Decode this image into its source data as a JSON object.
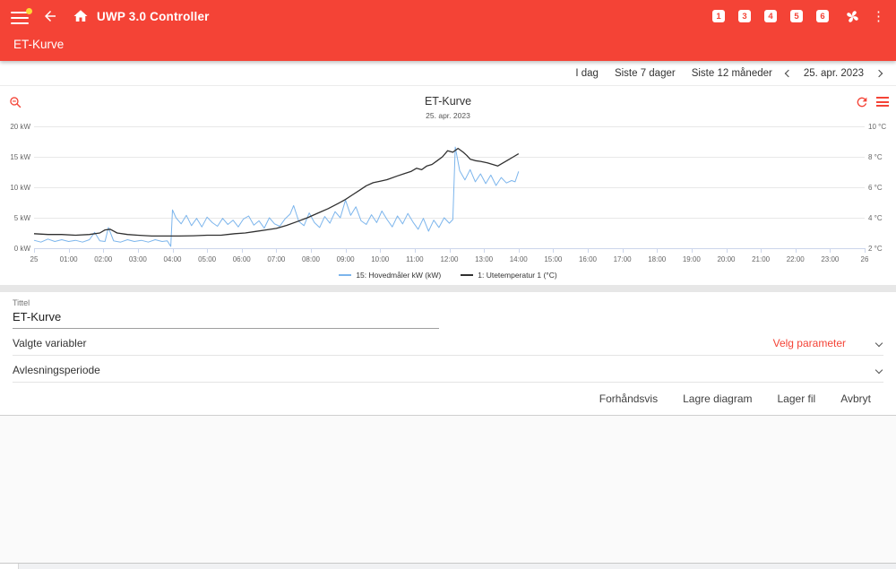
{
  "app": {
    "header": {
      "title": "UWP 3.0 Controller",
      "page_title": "ET-Kurve",
      "nav_badges": [
        "1",
        "3",
        "4",
        "5",
        "6"
      ]
    },
    "toolbar": {
      "today": "I dag",
      "last7": "Siste 7 dager",
      "last12": "Siste 12 måneder",
      "date": "25. apr. 2023"
    },
    "form": {
      "title_label": "Tittel",
      "title_value": "ET-Kurve",
      "variables_label": "Valgte variabler",
      "variables_action": "Velg parameter",
      "period_label": "Avlesningsperiode",
      "buttons": [
        {
          "label": "Forhåndsvis"
        },
        {
          "label": "Lagre diagram"
        },
        {
          "label": "Lager fil"
        },
        {
          "label": "Avbryt"
        }
      ]
    },
    "colors": {
      "header_red": "#f44336",
      "accent_red": "#f44336",
      "power_blue": "#7cb5ec",
      "temp_black": "#303030",
      "badge_yellow": "#fdd835"
    }
  },
  "chart_data": {
    "type": "line",
    "title": "ET-Kurve",
    "subtitle": "25. apr. 2023",
    "grid": "horizontal",
    "legend_position": "bottom-center",
    "x_axis": {
      "unit": "hours",
      "range_hours": [
        0,
        24
      ],
      "tick_labels": [
        "25",
        "01:00",
        "02:00",
        "03:00",
        "04:00",
        "05:00",
        "06:00",
        "07:00",
        "08:00",
        "09:00",
        "10:00",
        "11:00",
        "12:00",
        "13:00",
        "14:00",
        "15:00",
        "16:00",
        "17:00",
        "18:00",
        "19:00",
        "20:00",
        "21:00",
        "22:00",
        "23:00",
        "26"
      ]
    },
    "y_axis_left": {
      "unit": "kW",
      "ticks": [
        0,
        5,
        10,
        15,
        20
      ],
      "range": [
        0,
        20
      ]
    },
    "y_axis_right": {
      "unit": "°C",
      "ticks": [
        2,
        4,
        6,
        8,
        10
      ],
      "range": [
        2,
        10
      ]
    },
    "series": [
      {
        "name": "15: Hovedmåler kW (kW)",
        "axis": "left",
        "color": "#7cb5ec",
        "points": [
          [
            0,
            1.3
          ],
          [
            0.2,
            1.0
          ],
          [
            0.4,
            1.5
          ],
          [
            0.6,
            1.1
          ],
          [
            0.8,
            1.4
          ],
          [
            1.0,
            1.1
          ],
          [
            1.2,
            1.3
          ],
          [
            1.4,
            1.0
          ],
          [
            1.6,
            1.4
          ],
          [
            1.75,
            2.6
          ],
          [
            1.9,
            1.2
          ],
          [
            2.05,
            1.1
          ],
          [
            2.15,
            3.4
          ],
          [
            2.3,
            1.2
          ],
          [
            2.5,
            1.0
          ],
          [
            2.7,
            1.4
          ],
          [
            2.9,
            1.1
          ],
          [
            3.1,
            1.3
          ],
          [
            3.3,
            1.0
          ],
          [
            3.5,
            1.4
          ],
          [
            3.7,
            1.1
          ],
          [
            3.85,
            1.2
          ],
          [
            3.95,
            0.3
          ],
          [
            4.0,
            6.3
          ],
          [
            4.1,
            5.0
          ],
          [
            4.25,
            4.0
          ],
          [
            4.4,
            5.4
          ],
          [
            4.55,
            3.7
          ],
          [
            4.7,
            4.9
          ],
          [
            4.85,
            3.5
          ],
          [
            5.0,
            5.1
          ],
          [
            5.15,
            4.2
          ],
          [
            5.3,
            3.6
          ],
          [
            5.45,
            4.9
          ],
          [
            5.6,
            3.9
          ],
          [
            5.75,
            4.6
          ],
          [
            5.9,
            3.5
          ],
          [
            6.05,
            4.8
          ],
          [
            6.2,
            5.3
          ],
          [
            6.35,
            3.8
          ],
          [
            6.5,
            4.5
          ],
          [
            6.65,
            3.3
          ],
          [
            6.8,
            5.0
          ],
          [
            6.95,
            4.0
          ],
          [
            7.1,
            3.6
          ],
          [
            7.25,
            4.8
          ],
          [
            7.4,
            5.6
          ],
          [
            7.5,
            7.0
          ],
          [
            7.65,
            4.4
          ],
          [
            7.8,
            3.7
          ],
          [
            7.95,
            5.8
          ],
          [
            8.1,
            4.2
          ],
          [
            8.25,
            3.4
          ],
          [
            8.4,
            5.2
          ],
          [
            8.55,
            4.1
          ],
          [
            8.7,
            6.0
          ],
          [
            8.85,
            5.0
          ],
          [
            9.0,
            7.9
          ],
          [
            9.15,
            5.4
          ],
          [
            9.3,
            6.8
          ],
          [
            9.45,
            4.5
          ],
          [
            9.6,
            3.9
          ],
          [
            9.75,
            5.5
          ],
          [
            9.9,
            4.2
          ],
          [
            10.05,
            6.1
          ],
          [
            10.2,
            4.7
          ],
          [
            10.35,
            3.5
          ],
          [
            10.5,
            5.3
          ],
          [
            10.65,
            4.0
          ],
          [
            10.8,
            5.7
          ],
          [
            10.95,
            4.3
          ],
          [
            11.1,
            3.1
          ],
          [
            11.25,
            4.9
          ],
          [
            11.4,
            2.8
          ],
          [
            11.55,
            4.6
          ],
          [
            11.7,
            3.4
          ],
          [
            11.85,
            5.0
          ],
          [
            12.0,
            4.1
          ],
          [
            12.1,
            4.7
          ],
          [
            12.17,
            16.6
          ],
          [
            12.3,
            12.7
          ],
          [
            12.45,
            11.2
          ],
          [
            12.6,
            12.9
          ],
          [
            12.75,
            10.9
          ],
          [
            12.9,
            12.2
          ],
          [
            13.05,
            10.6
          ],
          [
            13.2,
            12.0
          ],
          [
            13.35,
            10.3
          ],
          [
            13.5,
            11.6
          ],
          [
            13.65,
            10.7
          ],
          [
            13.8,
            11.1
          ],
          [
            13.9,
            10.9
          ],
          [
            14.0,
            12.6
          ]
        ]
      },
      {
        "name": "1: Utetemperatur 1 (°C)",
        "axis": "right",
        "color": "#303030",
        "points": [
          [
            0,
            2.95
          ],
          [
            0.4,
            2.9
          ],
          [
            0.8,
            2.9
          ],
          [
            1.2,
            2.85
          ],
          [
            1.6,
            2.9
          ],
          [
            1.9,
            3.0
          ],
          [
            2.05,
            3.2
          ],
          [
            2.2,
            3.25
          ],
          [
            2.4,
            3.0
          ],
          [
            2.7,
            2.9
          ],
          [
            3.0,
            2.85
          ],
          [
            3.4,
            2.8
          ],
          [
            3.8,
            2.8
          ],
          [
            4.2,
            2.8
          ],
          [
            4.6,
            2.82
          ],
          [
            5.0,
            2.85
          ],
          [
            5.4,
            2.85
          ],
          [
            5.8,
            2.95
          ],
          [
            6.1,
            3.0
          ],
          [
            6.4,
            3.1
          ],
          [
            6.7,
            3.2
          ],
          [
            7.0,
            3.3
          ],
          [
            7.3,
            3.5
          ],
          [
            7.6,
            3.75
          ],
          [
            7.9,
            4.0
          ],
          [
            8.2,
            4.3
          ],
          [
            8.5,
            4.6
          ],
          [
            8.8,
            4.95
          ],
          [
            9.0,
            5.2
          ],
          [
            9.2,
            5.5
          ],
          [
            9.4,
            5.8
          ],
          [
            9.6,
            6.1
          ],
          [
            9.8,
            6.3
          ],
          [
            10.0,
            6.4
          ],
          [
            10.2,
            6.5
          ],
          [
            10.5,
            6.75
          ],
          [
            10.7,
            6.9
          ],
          [
            10.9,
            7.05
          ],
          [
            11.05,
            7.25
          ],
          [
            11.2,
            7.15
          ],
          [
            11.35,
            7.4
          ],
          [
            11.5,
            7.5
          ],
          [
            11.65,
            7.75
          ],
          [
            11.8,
            8.0
          ],
          [
            11.95,
            8.4
          ],
          [
            12.1,
            8.3
          ],
          [
            12.25,
            8.55
          ],
          [
            12.4,
            8.3
          ],
          [
            12.5,
            8.1
          ],
          [
            12.6,
            7.85
          ],
          [
            12.75,
            7.75
          ],
          [
            12.9,
            7.7
          ],
          [
            13.1,
            7.6
          ],
          [
            13.25,
            7.5
          ],
          [
            13.4,
            7.4
          ],
          [
            13.55,
            7.6
          ],
          [
            13.7,
            7.8
          ],
          [
            13.85,
            8.0
          ],
          [
            14.0,
            8.2
          ]
        ]
      }
    ]
  }
}
